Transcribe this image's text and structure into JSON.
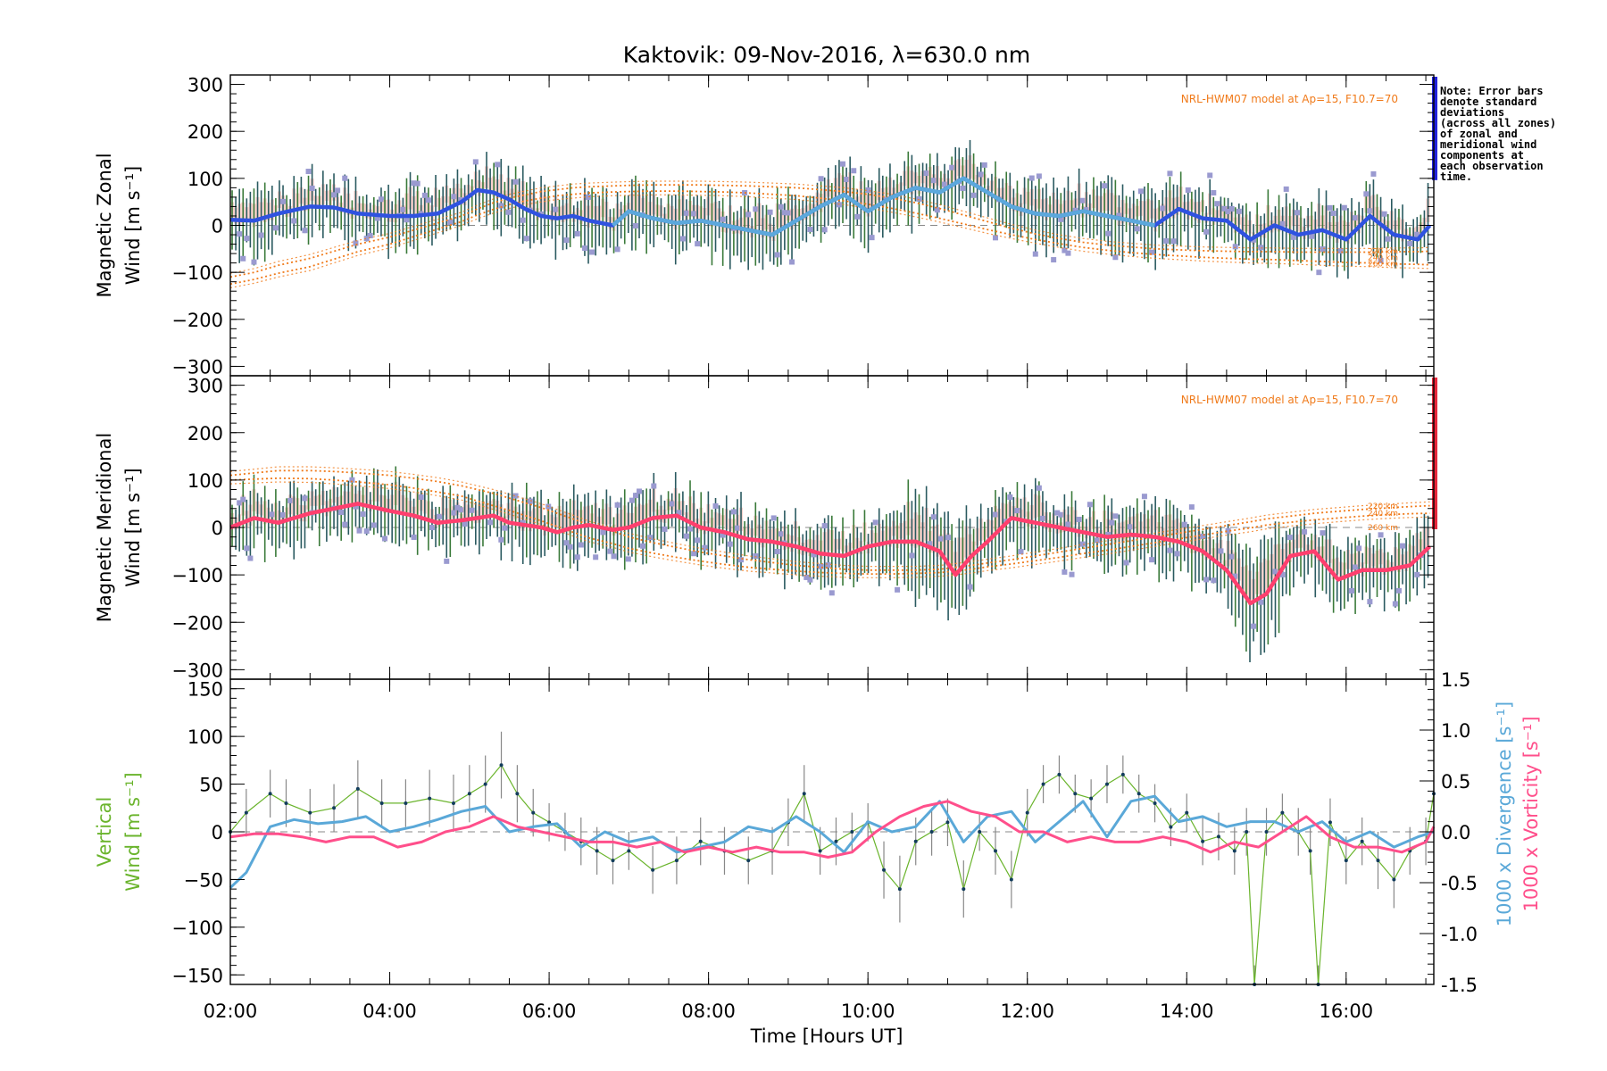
{
  "chart_data": {
    "title": "Kaktovik: 09-Nov-2016, λ=630.0 nm",
    "xlabel": "Time [Hours UT]",
    "x_ticks": [
      "02:00",
      "04:00",
      "06:00",
      "08:00",
      "10:00",
      "12:00",
      "14:00",
      "16:00"
    ],
    "x_tick_hours": [
      2,
      4,
      6,
      8,
      10,
      12,
      14,
      16
    ],
    "xlim": [
      2.0,
      17.1
    ],
    "note": [
      "Note: Error bars",
      "denote standard",
      "deviations",
      "(across all zones)",
      "of zonal and",
      "meridional wind",
      "components at",
      "each observation",
      "time."
    ],
    "colors": {
      "zonal_mean": "#2f52e0",
      "zonal_mean_light": "#5ca8dc",
      "meridional_mean": "#ff3f6e",
      "model": "#f07a1a",
      "error_bar": "#2a5a60",
      "scatter": "#9a9ad0",
      "pink_shade": "#f7b0a8",
      "vertical": "#6ab42c",
      "divergence": "#5aa8d8",
      "vorticity": "#ff4f8b",
      "side_zonal": "#2222dd",
      "side_meridional": "#e8283c"
    },
    "panels": [
      {
        "type": "line",
        "ylabel_lines": [
          "Magnetic Zonal",
          "Wind [m s⁻¹]"
        ],
        "ylim": [
          -320,
          320
        ],
        "y_ticks": [
          300,
          200,
          100,
          0,
          -100,
          -200,
          -300
        ],
        "model_label": "NRL-HWM07 model at Ap=15, F10.7=70",
        "altitude_labels": [
          "220 km",
          "240 km",
          "260 km"
        ],
        "series": {
          "x": [
            2.0,
            2.3,
            2.6,
            3.0,
            3.3,
            3.6,
            4.0,
            4.3,
            4.6,
            4.9,
            5.1,
            5.3,
            5.5,
            5.7,
            5.9,
            6.1,
            6.3,
            6.5,
            6.8,
            7.0,
            7.3,
            7.6,
            7.9,
            8.2,
            8.5,
            8.8,
            9.1,
            9.4,
            9.7,
            10.0,
            10.3,
            10.6,
            10.9,
            11.2,
            11.5,
            11.8,
            12.1,
            12.4,
            12.7,
            13.0,
            13.3,
            13.6,
            13.9,
            14.2,
            14.5,
            14.8,
            15.1,
            15.4,
            15.7,
            16.0,
            16.3,
            16.6,
            16.9,
            17.05
          ],
          "mean": [
            12,
            10,
            25,
            40,
            38,
            25,
            20,
            20,
            25,
            50,
            75,
            70,
            55,
            35,
            20,
            15,
            20,
            10,
            0,
            30,
            15,
            5,
            10,
            0,
            -10,
            -20,
            10,
            40,
            65,
            30,
            60,
            80,
            70,
            100,
            70,
            40,
            25,
            20,
            30,
            20,
            10,
            0,
            35,
            15,
            10,
            -30,
            0,
            -20,
            -10,
            -30,
            20,
            -20,
            -30,
            0
          ],
          "model_220": [
            -110,
            -100,
            -85,
            -70,
            -55,
            -40,
            -25,
            -10,
            5,
            20,
            35,
            48,
            58,
            65,
            72,
            76,
            80,
            82,
            84,
            85,
            86,
            86,
            86,
            85,
            84,
            82,
            80,
            76,
            72,
            66,
            58,
            48,
            36,
            22,
            8,
            -6,
            -18,
            -28,
            -36,
            -42,
            -46,
            -50,
            -52,
            -54,
            -55,
            -56,
            -56,
            -57,
            -57,
            -57,
            -57,
            -56,
            -56,
            -55
          ],
          "model_260": [
            -125,
            -115,
            -102,
            -88,
            -72,
            -56,
            -40,
            -24,
            -8,
            8,
            22,
            34,
            44,
            52,
            58,
            63,
            66,
            69,
            71,
            72,
            73,
            73,
            72,
            71,
            69,
            66,
            63,
            58,
            52,
            45,
            36,
            26,
            15,
            3,
            -9,
            -20,
            -30,
            -39,
            -47,
            -53,
            -58,
            -62,
            -65,
            -68,
            -70,
            -72,
            -73,
            -75,
            -77,
            -79,
            -80,
            -82,
            -83,
            -84
          ]
        }
      },
      {
        "type": "line",
        "ylabel_lines": [
          "Magnetic Meridional",
          "Wind [m s⁻¹]"
        ],
        "ylim": [
          -320,
          320
        ],
        "y_ticks": [
          300,
          200,
          100,
          0,
          -100,
          -200,
          -300
        ],
        "model_label": "NRL-HWM07 model at Ap=15, F10.7=70",
        "altitude_labels": [
          "220 km",
          "240 km",
          "260 km"
        ],
        "series": {
          "x": [
            2.0,
            2.3,
            2.6,
            3.0,
            3.3,
            3.6,
            4.0,
            4.3,
            4.6,
            4.9,
            5.1,
            5.3,
            5.5,
            5.7,
            5.9,
            6.1,
            6.3,
            6.5,
            6.8,
            7.0,
            7.3,
            7.6,
            7.9,
            8.2,
            8.5,
            8.8,
            9.1,
            9.4,
            9.7,
            10.0,
            10.3,
            10.6,
            10.9,
            11.1,
            11.3,
            11.5,
            11.8,
            12.1,
            12.4,
            12.7,
            13.0,
            13.3,
            13.6,
            13.9,
            14.2,
            14.5,
            14.8,
            15.0,
            15.3,
            15.6,
            15.9,
            16.2,
            16.5,
            16.8,
            17.05
          ],
          "mean": [
            0,
            20,
            10,
            30,
            40,
            50,
            35,
            25,
            10,
            15,
            20,
            25,
            10,
            5,
            0,
            -10,
            0,
            5,
            -5,
            0,
            20,
            25,
            0,
            -10,
            -25,
            -30,
            -40,
            -55,
            -60,
            -40,
            -30,
            -30,
            -50,
            -100,
            -60,
            -30,
            20,
            10,
            0,
            -10,
            -20,
            -15,
            -20,
            -30,
            -50,
            -90,
            -160,
            -140,
            -60,
            -50,
            -110,
            -90,
            -90,
            -80,
            -40
          ],
          "model_top": [
            110,
            115,
            120,
            120,
            118,
            115,
            110,
            104,
            97,
            88,
            80,
            72,
            62,
            52,
            42,
            30,
            18,
            5,
            -8,
            -20,
            -32,
            -42,
            -52,
            -60,
            -68,
            -74,
            -80,
            -84,
            -88,
            -90,
            -90,
            -90,
            -88,
            -84,
            -80,
            -75,
            -68,
            -60,
            -52,
            -44,
            -36,
            -28,
            -20,
            -12,
            -4,
            4,
            12,
            18,
            24,
            30,
            34,
            38,
            41,
            44,
            46
          ],
          "model_bottom": [
            100,
            102,
            104,
            103,
            100,
            96,
            90,
            83,
            75,
            66,
            56,
            46,
            36,
            25,
            14,
            2,
            -10,
            -22,
            -34,
            -44,
            -54,
            -63,
            -71,
            -78,
            -84,
            -88,
            -92,
            -95,
            -97,
            -98,
            -98,
            -97,
            -95,
            -92,
            -88,
            -83,
            -77,
            -70,
            -63,
            -55,
            -48,
            -40,
            -32,
            -24,
            -16,
            -8,
            -1,
            5,
            11,
            16,
            20,
            24,
            27,
            29,
            30
          ]
        }
      },
      {
        "type": "line",
        "ylabel_lines": [
          "Vertical",
          "Wind [m s⁻¹]"
        ],
        "ylim": [
          -160,
          160
        ],
        "y_ticks": [
          150,
          100,
          50,
          0,
          -50,
          -100,
          -150
        ],
        "y2label_lines": [
          "1000 x Divergence [s⁻¹]",
          "1000 x Vorticity [s⁻¹]"
        ],
        "y2lim": [
          -1.5,
          1.5
        ],
        "y2_ticks": [
          1.5,
          1.0,
          0.5,
          0.0,
          -0.5,
          -1.0,
          -1.5
        ],
        "series": {
          "vertical_x": [
            2.0,
            2.2,
            2.5,
            2.7,
            3.0,
            3.3,
            3.6,
            3.9,
            4.2,
            4.5,
            4.8,
            5.0,
            5.2,
            5.4,
            5.6,
            5.8,
            6.0,
            6.2,
            6.4,
            6.6,
            6.8,
            7.0,
            7.3,
            7.6,
            7.9,
            8.2,
            8.5,
            8.8,
            9.0,
            9.2,
            9.4,
            9.6,
            9.8,
            10.0,
            10.2,
            10.4,
            10.6,
            10.8,
            11.0,
            11.2,
            11.4,
            11.6,
            11.8,
            12.0,
            12.2,
            12.4,
            12.6,
            12.8,
            13.0,
            13.2,
            13.4,
            13.6,
            13.8,
            14.0,
            14.2,
            14.4,
            14.6,
            14.75,
            14.85,
            15.0,
            15.2,
            15.4,
            15.55,
            15.65,
            15.8,
            16.0,
            16.2,
            16.4,
            16.6,
            16.8,
            17.0,
            17.1
          ],
          "vertical": [
            0,
            20,
            40,
            30,
            20,
            25,
            45,
            30,
            30,
            35,
            30,
            40,
            50,
            70,
            40,
            20,
            10,
            0,
            -10,
            -20,
            -30,
            -20,
            -40,
            -30,
            -10,
            -20,
            -30,
            -20,
            10,
            40,
            -20,
            -10,
            0,
            10,
            -40,
            -60,
            -10,
            0,
            10,
            -60,
            0,
            -20,
            -50,
            20,
            50,
            60,
            40,
            35,
            50,
            60,
            40,
            30,
            5,
            20,
            -10,
            -5,
            -20,
            0,
            -160,
            0,
            20,
            0,
            -20,
            -160,
            10,
            -30,
            -10,
            -30,
            -50,
            -20,
            -10,
            40
          ],
          "vertical_err": [
            30,
            25,
            25,
            25,
            25,
            25,
            30,
            25,
            25,
            30,
            30,
            30,
            30,
            35,
            30,
            25,
            20,
            20,
            25,
            25,
            25,
            20,
            25,
            25,
            25,
            25,
            25,
            25,
            25,
            30,
            25,
            25,
            20,
            20,
            30,
            35,
            25,
            25,
            25,
            30,
            20,
            25,
            30,
            25,
            20,
            20,
            20,
            20,
            20,
            20,
            20,
            20,
            20,
            20,
            25,
            25,
            25,
            25,
            20,
            25,
            20,
            25,
            25,
            20,
            25,
            25,
            25,
            30,
            30,
            25,
            25,
            20
          ],
          "div_x": [
            2.0,
            2.2,
            2.5,
            2.8,
            3.1,
            3.4,
            3.7,
            4.0,
            4.3,
            4.6,
            4.9,
            5.2,
            5.5,
            5.8,
            6.1,
            6.4,
            6.7,
            7.0,
            7.3,
            7.6,
            7.9,
            8.2,
            8.5,
            8.8,
            9.1,
            9.4,
            9.7,
            10.0,
            10.3,
            10.6,
            10.9,
            11.2,
            11.5,
            11.8,
            12.1,
            12.4,
            12.7,
            13.0,
            13.3,
            13.6,
            13.9,
            14.2,
            14.5,
            14.8,
            15.1,
            15.4,
            15.7,
            16.0,
            16.3,
            16.6,
            16.9,
            17.1
          ],
          "divergence": [
            -0.55,
            -0.4,
            0.05,
            0.12,
            0.08,
            0.1,
            0.15,
            0.0,
            0.05,
            0.12,
            0.2,
            0.25,
            0.0,
            0.05,
            0.08,
            -0.15,
            0.0,
            -0.1,
            -0.05,
            -0.2,
            -0.15,
            -0.1,
            0.05,
            0.0,
            0.15,
            0.0,
            -0.2,
            0.1,
            0.0,
            0.05,
            0.3,
            -0.1,
            0.15,
            0.2,
            -0.1,
            0.1,
            0.3,
            -0.05,
            0.3,
            0.35,
            0.1,
            0.15,
            0.05,
            0.1,
            0.1,
            0.0,
            0.1,
            -0.1,
            0.0,
            -0.15,
            -0.05,
            0.0
          ],
          "vort_x": [
            2.0,
            2.3,
            2.6,
            2.9,
            3.2,
            3.5,
            3.8,
            4.1,
            4.4,
            4.7,
            5.0,
            5.3,
            5.6,
            5.9,
            6.2,
            6.5,
            6.8,
            7.1,
            7.4,
            7.7,
            8.0,
            8.3,
            8.6,
            8.9,
            9.2,
            9.5,
            9.8,
            10.1,
            10.4,
            10.7,
            11.0,
            11.3,
            11.6,
            11.9,
            12.2,
            12.5,
            12.8,
            13.1,
            13.4,
            13.7,
            14.0,
            14.3,
            14.6,
            14.9,
            15.2,
            15.5,
            15.8,
            16.1,
            16.4,
            16.7,
            17.0,
            17.1
          ],
          "vorticity": [
            -0.05,
            -0.02,
            -0.02,
            -0.05,
            -0.1,
            -0.05,
            -0.05,
            -0.15,
            -0.1,
            0.0,
            0.05,
            0.15,
            0.05,
            0.0,
            -0.05,
            -0.1,
            -0.1,
            -0.15,
            -0.1,
            -0.2,
            -0.15,
            -0.2,
            -0.15,
            -0.2,
            -0.2,
            -0.25,
            -0.2,
            0.0,
            0.15,
            0.25,
            0.3,
            0.2,
            0.15,
            0.0,
            0.0,
            -0.1,
            -0.05,
            -0.1,
            -0.1,
            -0.05,
            -0.1,
            -0.2,
            -0.1,
            -0.15,
            0.0,
            0.15,
            -0.05,
            -0.15,
            -0.15,
            -0.2,
            -0.1,
            0.05
          ]
        }
      }
    ]
  }
}
